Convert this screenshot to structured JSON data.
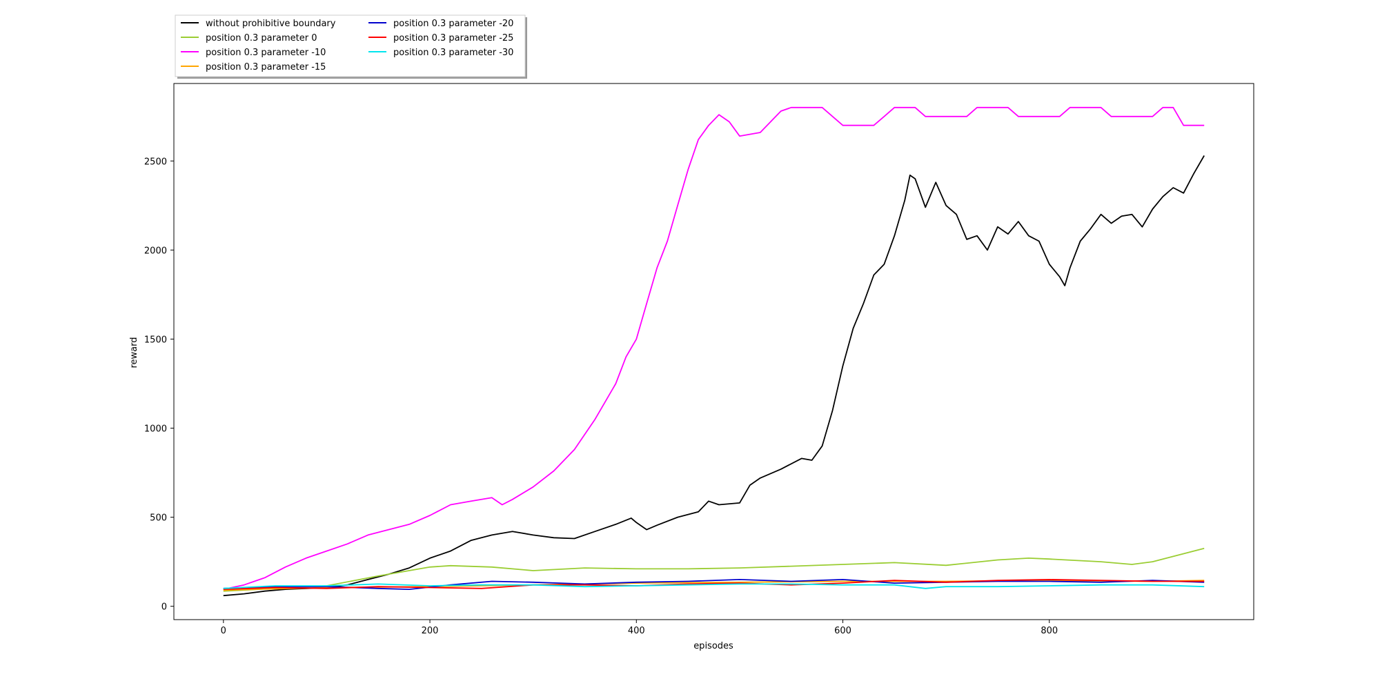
{
  "chart_data": {
    "type": "line",
    "xlabel": "episodes",
    "ylabel": "reward",
    "xlim": [
      -48,
      998
    ],
    "ylim": [
      -75,
      2935
    ],
    "xticks": [
      0,
      200,
      400,
      600,
      800
    ],
    "yticks": [
      0,
      500,
      1000,
      1500,
      2000,
      2500
    ],
    "grid": false,
    "legend_position": "top-left (outside, above plot)",
    "legend_columns": 2,
    "series": [
      {
        "name": "without prohibitive boundary",
        "color": "#000000",
        "points": [
          [
            0,
            60
          ],
          [
            20,
            70
          ],
          [
            40,
            85
          ],
          [
            60,
            95
          ],
          [
            80,
            100
          ],
          [
            100,
            105
          ],
          [
            120,
            120
          ],
          [
            140,
            150
          ],
          [
            160,
            180
          ],
          [
            180,
            215
          ],
          [
            200,
            270
          ],
          [
            220,
            310
          ],
          [
            240,
            370
          ],
          [
            260,
            400
          ],
          [
            280,
            420
          ],
          [
            300,
            400
          ],
          [
            320,
            385
          ],
          [
            340,
            380
          ],
          [
            360,
            420
          ],
          [
            380,
            460
          ],
          [
            395,
            495
          ],
          [
            400,
            470
          ],
          [
            410,
            430
          ],
          [
            420,
            455
          ],
          [
            440,
            500
          ],
          [
            460,
            530
          ],
          [
            470,
            590
          ],
          [
            480,
            570
          ],
          [
            500,
            580
          ],
          [
            510,
            680
          ],
          [
            520,
            720
          ],
          [
            540,
            770
          ],
          [
            560,
            830
          ],
          [
            570,
            820
          ],
          [
            580,
            900
          ],
          [
            590,
            1100
          ],
          [
            600,
            1350
          ],
          [
            610,
            1560
          ],
          [
            620,
            1700
          ],
          [
            630,
            1860
          ],
          [
            640,
            1920
          ],
          [
            650,
            2080
          ],
          [
            660,
            2280
          ],
          [
            665,
            2420
          ],
          [
            670,
            2400
          ],
          [
            680,
            2240
          ],
          [
            690,
            2380
          ],
          [
            700,
            2250
          ],
          [
            710,
            2200
          ],
          [
            720,
            2060
          ],
          [
            730,
            2080
          ],
          [
            740,
            2000
          ],
          [
            750,
            2130
          ],
          [
            760,
            2090
          ],
          [
            770,
            2160
          ],
          [
            780,
            2080
          ],
          [
            790,
            2050
          ],
          [
            800,
            1920
          ],
          [
            810,
            1850
          ],
          [
            815,
            1800
          ],
          [
            820,
            1900
          ],
          [
            830,
            2050
          ],
          [
            840,
            2120
          ],
          [
            850,
            2200
          ],
          [
            860,
            2150
          ],
          [
            870,
            2190
          ],
          [
            880,
            2200
          ],
          [
            890,
            2130
          ],
          [
            900,
            2230
          ],
          [
            910,
            2300
          ],
          [
            920,
            2350
          ],
          [
            930,
            2320
          ],
          [
            940,
            2430
          ],
          [
            950,
            2530
          ]
        ]
      },
      {
        "name": "position 0.3 parameter 0",
        "color": "#9acd32",
        "points": [
          [
            0,
            85
          ],
          [
            50,
            100
          ],
          [
            100,
            115
          ],
          [
            150,
            170
          ],
          [
            200,
            220
          ],
          [
            220,
            228
          ],
          [
            260,
            220
          ],
          [
            300,
            200
          ],
          [
            350,
            215
          ],
          [
            400,
            210
          ],
          [
            450,
            210
          ],
          [
            500,
            215
          ],
          [
            550,
            225
          ],
          [
            600,
            235
          ],
          [
            650,
            245
          ],
          [
            700,
            230
          ],
          [
            750,
            260
          ],
          [
            780,
            270
          ],
          [
            800,
            265
          ],
          [
            850,
            250
          ],
          [
            880,
            235
          ],
          [
            900,
            250
          ],
          [
            920,
            280
          ],
          [
            940,
            310
          ],
          [
            950,
            325
          ]
        ]
      },
      {
        "name": "position 0.3 parameter -10",
        "color": "#ff00ff",
        "points": [
          [
            0,
            95
          ],
          [
            20,
            120
          ],
          [
            40,
            160
          ],
          [
            60,
            220
          ],
          [
            80,
            270
          ],
          [
            100,
            310
          ],
          [
            120,
            350
          ],
          [
            140,
            400
          ],
          [
            160,
            430
          ],
          [
            180,
            460
          ],
          [
            200,
            510
          ],
          [
            220,
            570
          ],
          [
            240,
            590
          ],
          [
            260,
            610
          ],
          [
            270,
            570
          ],
          [
            280,
            600
          ],
          [
            300,
            670
          ],
          [
            320,
            760
          ],
          [
            340,
            880
          ],
          [
            360,
            1050
          ],
          [
            370,
            1150
          ],
          [
            380,
            1250
          ],
          [
            390,
            1400
          ],
          [
            400,
            1500
          ],
          [
            410,
            1700
          ],
          [
            420,
            1900
          ],
          [
            430,
            2050
          ],
          [
            440,
            2250
          ],
          [
            450,
            2450
          ],
          [
            460,
            2620
          ],
          [
            470,
            2700
          ],
          [
            480,
            2760
          ],
          [
            490,
            2720
          ],
          [
            500,
            2640
          ],
          [
            520,
            2660
          ],
          [
            530,
            2720
          ],
          [
            540,
            2780
          ],
          [
            550,
            2800
          ],
          [
            580,
            2800
          ],
          [
            590,
            2750
          ],
          [
            600,
            2700
          ],
          [
            630,
            2700
          ],
          [
            640,
            2750
          ],
          [
            650,
            2800
          ],
          [
            670,
            2800
          ],
          [
            680,
            2750
          ],
          [
            720,
            2750
          ],
          [
            730,
            2800
          ],
          [
            760,
            2800
          ],
          [
            770,
            2750
          ],
          [
            810,
            2750
          ],
          [
            820,
            2800
          ],
          [
            850,
            2800
          ],
          [
            860,
            2750
          ],
          [
            900,
            2750
          ],
          [
            910,
            2800
          ],
          [
            920,
            2800
          ],
          [
            930,
            2700
          ],
          [
            950,
            2700
          ]
        ]
      },
      {
        "name": "position 0.3 parameter -15",
        "color": "#ffa500",
        "points": [
          [
            0,
            90
          ],
          [
            100,
            105
          ],
          [
            200,
            110
          ],
          [
            300,
            120
          ],
          [
            400,
            130
          ],
          [
            500,
            135
          ],
          [
            600,
            140
          ],
          [
            700,
            140
          ],
          [
            800,
            145
          ],
          [
            900,
            140
          ],
          [
            950,
            145
          ]
        ]
      },
      {
        "name": "position 0.3 parameter -20",
        "color": "#0000cd",
        "points": [
          [
            0,
            100
          ],
          [
            50,
            110
          ],
          [
            100,
            110
          ],
          [
            150,
            100
          ],
          [
            180,
            95
          ],
          [
            220,
            120
          ],
          [
            260,
            140
          ],
          [
            300,
            135
          ],
          [
            350,
            125
          ],
          [
            400,
            135
          ],
          [
            450,
            140
          ],
          [
            500,
            150
          ],
          [
            550,
            140
          ],
          [
            600,
            150
          ],
          [
            650,
            130
          ],
          [
            700,
            135
          ],
          [
            750,
            140
          ],
          [
            800,
            140
          ],
          [
            850,
            135
          ],
          [
            900,
            145
          ],
          [
            950,
            135
          ]
        ]
      },
      {
        "name": "position 0.3 parameter -25",
        "color": "#ff0000",
        "points": [
          [
            0,
            95
          ],
          [
            50,
            105
          ],
          [
            100,
            100
          ],
          [
            150,
            110
          ],
          [
            200,
            105
          ],
          [
            250,
            100
          ],
          [
            300,
            120
          ],
          [
            350,
            120
          ],
          [
            400,
            115
          ],
          [
            450,
            125
          ],
          [
            500,
            130
          ],
          [
            550,
            120
          ],
          [
            600,
            130
          ],
          [
            650,
            145
          ],
          [
            700,
            135
          ],
          [
            750,
            145
          ],
          [
            800,
            150
          ],
          [
            850,
            145
          ],
          [
            900,
            140
          ],
          [
            950,
            140
          ]
        ]
      },
      {
        "name": "position 0.3 parameter -30",
        "color": "#00e5ee",
        "points": [
          [
            0,
            100
          ],
          [
            50,
            115
          ],
          [
            100,
            115
          ],
          [
            150,
            125
          ],
          [
            200,
            115
          ],
          [
            250,
            120
          ],
          [
            300,
            120
          ],
          [
            350,
            110
          ],
          [
            400,
            115
          ],
          [
            450,
            120
          ],
          [
            500,
            125
          ],
          [
            550,
            125
          ],
          [
            600,
            120
          ],
          [
            650,
            120
          ],
          [
            680,
            100
          ],
          [
            700,
            110
          ],
          [
            750,
            110
          ],
          [
            800,
            115
          ],
          [
            850,
            120
          ],
          [
            900,
            120
          ],
          [
            950,
            110
          ]
        ]
      }
    ]
  }
}
